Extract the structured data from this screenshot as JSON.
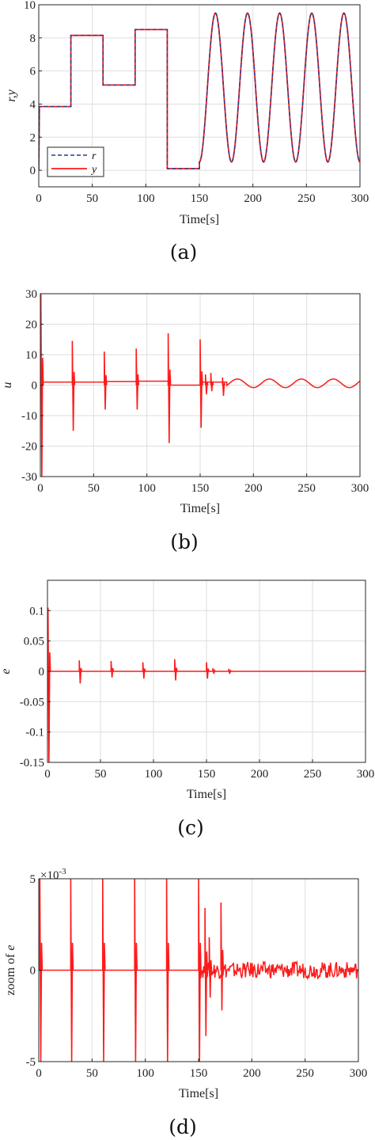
{
  "chart_data": [
    {
      "type": "line",
      "panel_label": "(a)",
      "xlabel": "Time[s]",
      "ylabel": "r,y",
      "xlim": [
        0,
        300
      ],
      "ylim": [
        -1,
        10
      ],
      "xticks": [
        0,
        50,
        100,
        150,
        200,
        250,
        300
      ],
      "yticks": [
        0,
        2,
        4,
        6,
        8,
        10
      ],
      "grid": true,
      "legend": {
        "placement": "bottom-left",
        "entries": [
          "r",
          "y"
        ]
      },
      "colors": {
        "r": "#1f3f8f",
        "y": "#ff1a1a"
      },
      "series": [
        {
          "name": "r",
          "style": "dashed",
          "segments": [
            {
              "kind": "step",
              "x": [
                0,
                30,
                30,
                60,
                60,
                90,
                90,
                120,
                120,
                150
              ],
              "y": [
                3.85,
                3.85,
                8.15,
                8.15,
                5.15,
                5.15,
                8.5,
                8.5,
                0.1,
                0.1
              ]
            },
            {
              "kind": "sine",
              "x_start": 150,
              "x_end": 300,
              "offset": 5,
              "amplitude": 4.5,
              "period": 30,
              "phase_deg": 0
            }
          ]
        },
        {
          "name": "y",
          "style": "solid",
          "segments": [
            {
              "kind": "step",
              "x": [
                0,
                30,
                30,
                60,
                60,
                90,
                90,
                120,
                120,
                150
              ],
              "y": [
                3.85,
                3.85,
                8.15,
                8.15,
                5.15,
                5.15,
                8.5,
                8.5,
                0.1,
                0.1
              ]
            },
            {
              "kind": "sine",
              "x_start": 150,
              "x_end": 300,
              "offset": 5,
              "amplitude": 4.5,
              "period": 30,
              "phase_deg": 0
            }
          ]
        }
      ]
    },
    {
      "type": "line",
      "panel_label": "(b)",
      "xlabel": "Time[s]",
      "ylabel": "u",
      "xlim": [
        0,
        300
      ],
      "ylim": [
        -30,
        30
      ],
      "xticks": [
        0,
        50,
        100,
        150,
        200,
        250,
        300
      ],
      "yticks": [
        -30,
        -20,
        -10,
        0,
        10,
        20,
        30
      ],
      "grid": true,
      "colors": {
        "u": "#ff1a1a"
      },
      "series": [
        {
          "name": "u",
          "base": [
            [
              0,
              1.0
            ],
            [
              30,
              1.0
            ],
            [
              60,
              1.2
            ],
            [
              90,
              1.3
            ],
            [
              120,
              0.0
            ],
            [
              150,
              1.0
            ]
          ],
          "sine_after": {
            "x_start": 175,
            "offset": 0.6,
            "amplitude": 1.4,
            "period": 30
          },
          "spikes": [
            {
              "x": 0.5,
              "min": -30,
              "max": 30
            },
            {
              "x": 30,
              "min": -15,
              "max": 14.5
            },
            {
              "x": 60,
              "min": -8,
              "max": 11
            },
            {
              "x": 90,
              "min": -8,
              "max": 12
            },
            {
              "x": 120,
              "min": -19,
              "max": 17
            },
            {
              "x": 150,
              "min": -14,
              "max": 15
            },
            {
              "x": 155,
              "min": -3,
              "max": 3.5
            },
            {
              "x": 160,
              "min": -2,
              "max": 4
            },
            {
              "x": 171,
              "min": -3.5,
              "max": 2.5
            }
          ]
        }
      ]
    },
    {
      "type": "line",
      "panel_label": "(c)",
      "xlabel": "Time[s]",
      "ylabel": "e",
      "xlim": [
        0,
        300
      ],
      "ylim": [
        -0.15,
        0.15
      ],
      "xticks": [
        0,
        50,
        100,
        150,
        200,
        250,
        300
      ],
      "yticks": [
        -0.15,
        -0.1,
        -0.05,
        0,
        0.05,
        0.1
      ],
      "ytick_labels": [
        "-0.15",
        "-0.1",
        "-0.05",
        "0",
        "0.05",
        "0.1"
      ],
      "grid": true,
      "colors": {
        "e": "#ff1a1a"
      },
      "series": [
        {
          "name": "e",
          "spikes": [
            {
              "x": 0.5,
              "min": -0.15,
              "max": 0.105
            },
            {
              "x": 30,
              "min": -0.02,
              "max": 0.018
            },
            {
              "x": 60,
              "min": -0.01,
              "max": 0.017
            },
            {
              "x": 90,
              "min": -0.012,
              "max": 0.015
            },
            {
              "x": 120,
              "min": -0.015,
              "max": 0.02
            },
            {
              "x": 150,
              "min": -0.012,
              "max": 0.015
            },
            {
              "x": 156,
              "min": -0.004,
              "max": 0.005
            },
            {
              "x": 171,
              "min": -0.004,
              "max": 0.004
            }
          ]
        }
      ]
    },
    {
      "type": "line",
      "panel_label": "(d)",
      "xlabel": "Time[s]",
      "ylabel": "zoom of e",
      "y_exponent_label": "×10",
      "y_exponent_value": "-3",
      "xlim": [
        0,
        300
      ],
      "ylim": [
        -5,
        5
      ],
      "xticks": [
        0,
        50,
        100,
        150,
        200,
        250,
        300
      ],
      "yticks": [
        -5,
        0,
        5
      ],
      "grid": true,
      "colors": {
        "e": "#ff1a1a"
      },
      "series": [
        {
          "name": "e",
          "noise_after": {
            "x_start": 152,
            "amplitude": 0.45
          },
          "spikes": [
            {
              "x": 1,
              "min": -5,
              "max": 5
            },
            {
              "x": 30,
              "min": -5,
              "max": 5
            },
            {
              "x": 60,
              "min": -5,
              "max": 5
            },
            {
              "x": 90,
              "min": -5,
              "max": 5
            },
            {
              "x": 120,
              "min": -5,
              "max": 5
            },
            {
              "x": 150,
              "min": -5,
              "max": 5
            },
            {
              "x": 156,
              "min": -3.6,
              "max": 3.4
            },
            {
              "x": 160,
              "min": -1.5,
              "max": 1.8
            },
            {
              "x": 171,
              "min": -2.2,
              "max": 3.7
            }
          ]
        }
      ]
    }
  ]
}
